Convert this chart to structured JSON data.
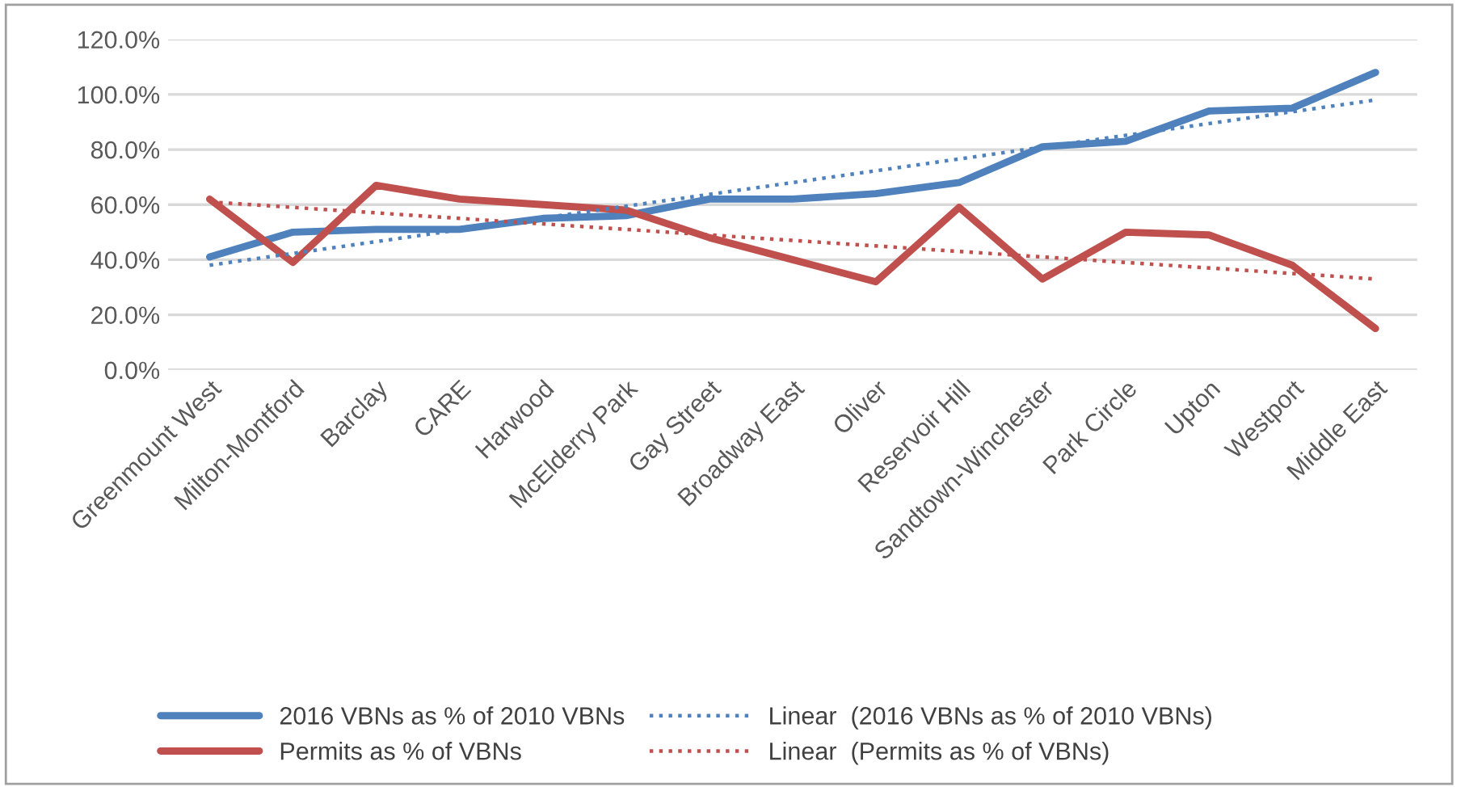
{
  "chart_data": {
    "type": "line",
    "categories": [
      "Greenmount West",
      "Milton-Montford",
      "Barclay",
      "CARE",
      "Harwood",
      "McElderry Park",
      "Gay Street",
      "Broadway East",
      "Oliver",
      "Reservoir Hill",
      "Sandtown-Winchester",
      "Park Circle",
      "Upton",
      "Westport",
      "Middle East"
    ],
    "series": [
      {
        "name": "2016 VBNs as % of 2010 VBNs",
        "color": "#4f81bd",
        "values": [
          41,
          50,
          51,
          51,
          55,
          56,
          62,
          62,
          64,
          68,
          81,
          83,
          94,
          95,
          108
        ]
      },
      {
        "name": "Permits as % of VBNs",
        "color": "#c0504d",
        "values": [
          62,
          39,
          67,
          62,
          60,
          58,
          48,
          40,
          32,
          59,
          33,
          50,
          49,
          38,
          15
        ]
      },
      {
        "name": "Linear  (2016 VBNs as % of 2010 VBNs)",
        "color": "#4f81bd",
        "line_style": "dotted",
        "x": [
          "Greenmount West",
          "Middle East"
        ],
        "values": [
          38,
          98
        ]
      },
      {
        "name": "Linear  (Permits as % of VBNs)",
        "color": "#c0504d",
        "line_style": "dotted",
        "x": [
          "Greenmount West",
          "Middle East"
        ],
        "values": [
          61,
          33
        ]
      }
    ],
    "ylim": [
      0,
      120
    ],
    "yticks": [
      {
        "value": 0,
        "label": "0.0%"
      },
      {
        "value": 20,
        "label": "20.0%"
      },
      {
        "value": 40,
        "label": "40.0%"
      },
      {
        "value": 60,
        "label": "60.0%"
      },
      {
        "value": 80,
        "label": "80.0%"
      },
      {
        "value": 100,
        "label": "100.0%"
      },
      {
        "value": 120,
        "label": "120.0%"
      }
    ],
    "grid": "y",
    "legend": "bottom",
    "line_style": "solid",
    "marker": "none"
  }
}
